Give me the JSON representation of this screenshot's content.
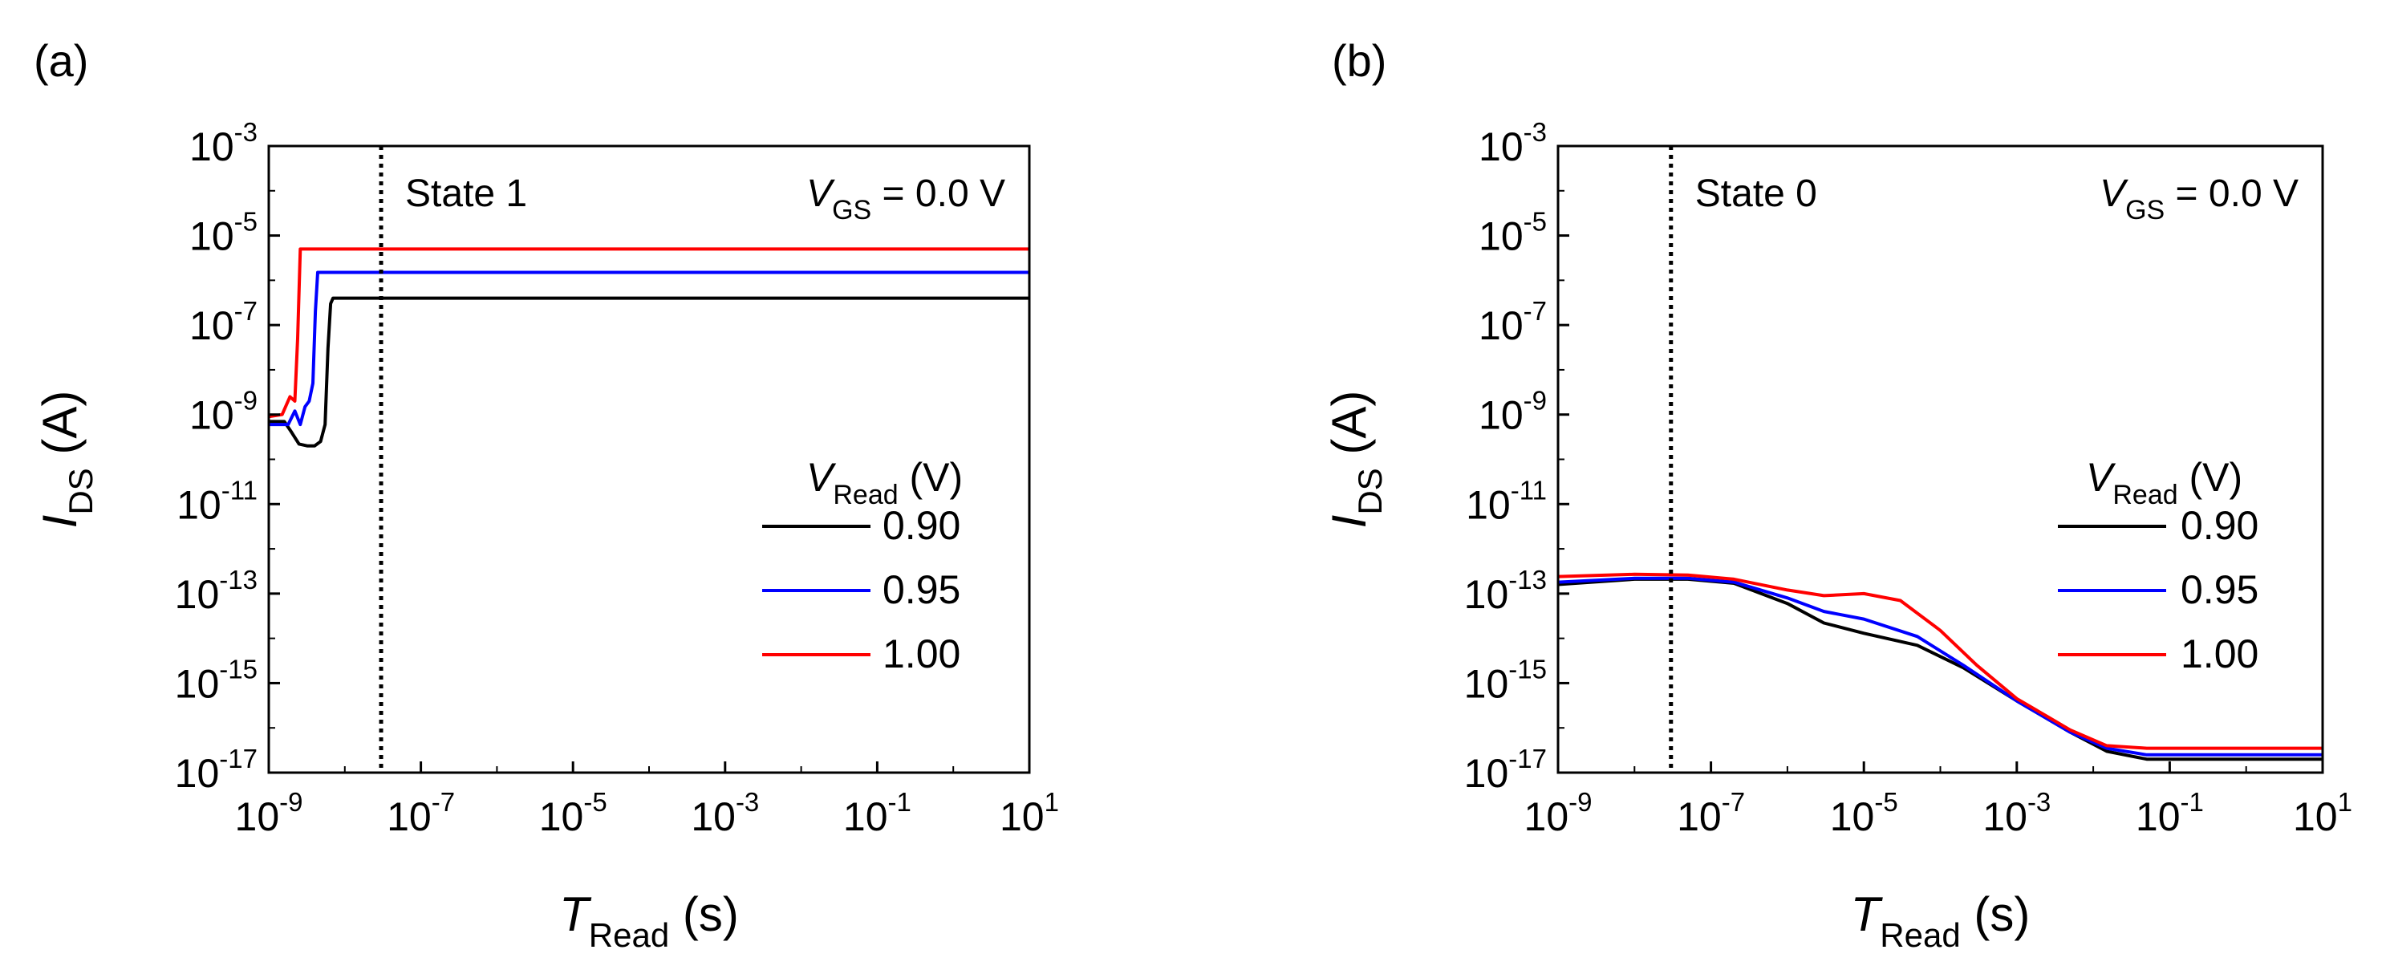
{
  "chart_data": [
    {
      "type": "line",
      "panel_label": "(a)",
      "x_scale": "log",
      "y_scale": "log",
      "xlim": [
        1e-09,
        10
      ],
      "ylim": [
        1e-17,
        0.001
      ],
      "x_ticks": [
        {
          "base": "10",
          "exp": "-9",
          "value": 1e-09
        },
        {
          "base": "10",
          "exp": "-7",
          "value": 1e-07
        },
        {
          "base": "10",
          "exp": "-5",
          "value": 1e-05
        },
        {
          "base": "10",
          "exp": "-3",
          "value": 0.001
        },
        {
          "base": "10",
          "exp": "-1",
          "value": 0.1
        },
        {
          "base": "10",
          "exp": "1",
          "value": 10
        }
      ],
      "y_ticks": [
        {
          "base": "10",
          "exp": "-3",
          "value": 0.001
        },
        {
          "base": "10",
          "exp": "-5",
          "value": 1e-05
        },
        {
          "base": "10",
          "exp": "-7",
          "value": 1e-07
        },
        {
          "base": "10",
          "exp": "-9",
          "value": 1e-09
        },
        {
          "base": "10",
          "exp": "-11",
          "value": 1e-11
        },
        {
          "base": "10",
          "exp": "-13",
          "value": 1e-13
        },
        {
          "base": "10",
          "exp": "-15",
          "value": 1e-15
        },
        {
          "base": "10",
          "exp": "-17",
          "value": 1e-17
        }
      ],
      "xlabel": {
        "main": "T",
        "sub": "Read",
        "unit": " (s)"
      },
      "ylabel": {
        "main": "I",
        "sub": "DS",
        "unit": " (A)"
      },
      "state_label": "State 1",
      "vgs_label": {
        "main": "V",
        "sub": "GS",
        "rest": " = 0.0 V"
      },
      "vline_x": 3e-08,
      "legend_title": {
        "main": "V",
        "sub": "Read",
        "unit": " (V)"
      },
      "series": [
        {
          "name": "0.90",
          "color": "#000000",
          "points": [
            [
              1e-09,
              7e-10
            ],
            [
              1.6e-09,
              7e-10
            ],
            [
              2e-09,
              4e-10
            ],
            [
              2.5e-09,
              2.2e-10
            ],
            [
              3.2e-09,
              2e-10
            ],
            [
              4e-09,
              2e-10
            ],
            [
              4.8e-09,
              2.5e-10
            ],
            [
              5.5e-09,
              6e-10
            ],
            [
              6e-09,
              3e-08
            ],
            [
              6.5e-09,
              3e-07
            ],
            [
              7e-09,
              4e-07
            ],
            [
              10,
              4e-07
            ]
          ]
        },
        {
          "name": "0.95",
          "color": "#0000ff",
          "points": [
            [
              1e-09,
              6e-10
            ],
            [
              1.8e-09,
              6e-10
            ],
            [
              2.2e-09,
              1.2e-09
            ],
            [
              2.6e-09,
              6e-10
            ],
            [
              3e-09,
              1.5e-09
            ],
            [
              3.4e-09,
              2e-09
            ],
            [
              3.8e-09,
              5e-09
            ],
            [
              4.1e-09,
              2e-07
            ],
            [
              4.4e-09,
              1.5e-06
            ],
            [
              10,
              1.5e-06
            ]
          ]
        },
        {
          "name": "1.00",
          "color": "#ff0000",
          "points": [
            [
              1e-09,
              9e-10
            ],
            [
              1.5e-09,
              1e-09
            ],
            [
              1.9e-09,
              2.5e-09
            ],
            [
              2.2e-09,
              2e-09
            ],
            [
              2.4e-09,
              5e-08
            ],
            [
              2.6e-09,
              5e-06
            ],
            [
              10,
              5e-06
            ]
          ]
        }
      ]
    },
    {
      "type": "line",
      "panel_label": "(b)",
      "x_scale": "log",
      "y_scale": "log",
      "xlim": [
        1e-09,
        10
      ],
      "ylim": [
        1e-17,
        0.001
      ],
      "x_ticks": [
        {
          "base": "10",
          "exp": "-9",
          "value": 1e-09
        },
        {
          "base": "10",
          "exp": "-7",
          "value": 1e-07
        },
        {
          "base": "10",
          "exp": "-5",
          "value": 1e-05
        },
        {
          "base": "10",
          "exp": "-3",
          "value": 0.001
        },
        {
          "base": "10",
          "exp": "-1",
          "value": 0.1
        },
        {
          "base": "10",
          "exp": "1",
          "value": 10
        }
      ],
      "y_ticks": [
        {
          "base": "10",
          "exp": "-3",
          "value": 0.001
        },
        {
          "base": "10",
          "exp": "-5",
          "value": 1e-05
        },
        {
          "base": "10",
          "exp": "-7",
          "value": 1e-07
        },
        {
          "base": "10",
          "exp": "-9",
          "value": 1e-09
        },
        {
          "base": "10",
          "exp": "-11",
          "value": 1e-11
        },
        {
          "base": "10",
          "exp": "-13",
          "value": 1e-13
        },
        {
          "base": "10",
          "exp": "-15",
          "value": 1e-15
        },
        {
          "base": "10",
          "exp": "-17",
          "value": 1e-17
        }
      ],
      "xlabel": {
        "main": "T",
        "sub": "Read",
        "unit": " (s)"
      },
      "ylabel": {
        "main": "I",
        "sub": "DS",
        "unit": " (A)"
      },
      "state_label": "State 0",
      "vgs_label": {
        "main": "V",
        "sub": "GS",
        "rest": " = 0.0 V"
      },
      "vline_x": 3e-08,
      "legend_title": {
        "main": "V",
        "sub": "Read",
        "unit": " (V)"
      },
      "series": [
        {
          "name": "0.90",
          "color": "#000000",
          "points": [
            [
              1e-09,
              1.6e-13
            ],
            [
              1e-08,
              2.1e-13
            ],
            [
              5e-08,
              2.1e-13
            ],
            [
              2e-07,
              1.7e-13
            ],
            [
              1e-06,
              6e-14
            ],
            [
              3e-06,
              2.2e-14
            ],
            [
              1e-05,
              1.3e-14
            ],
            [
              5e-05,
              7e-15
            ],
            [
              0.0002,
              2.2e-15
            ],
            [
              0.001,
              4e-16
            ],
            [
              0.005,
              8e-17
            ],
            [
              0.015,
              3e-17
            ],
            [
              0.05,
              2e-17
            ],
            [
              10,
              2e-17
            ]
          ]
        },
        {
          "name": "0.95",
          "color": "#0000ff",
          "points": [
            [
              1e-09,
              1.8e-13
            ],
            [
              1e-08,
              2.2e-13
            ],
            [
              5e-08,
              2.2e-13
            ],
            [
              2e-07,
              1.8e-13
            ],
            [
              1e-06,
              8e-14
            ],
            [
              3e-06,
              4e-14
            ],
            [
              1e-05,
              2.7e-14
            ],
            [
              5e-05,
              1.1e-14
            ],
            [
              0.0002,
              2.5e-15
            ],
            [
              0.001,
              4e-16
            ],
            [
              0.005,
              8e-17
            ],
            [
              0.015,
              3.5e-17
            ],
            [
              0.05,
              2.5e-17
            ],
            [
              10,
              2.5e-17
            ]
          ]
        },
        {
          "name": "1.00",
          "color": "#ff0000",
          "points": [
            [
              1e-09,
              2.4e-13
            ],
            [
              1e-08,
              2.7e-13
            ],
            [
              5e-08,
              2.6e-13
            ],
            [
              2e-07,
              2.1e-13
            ],
            [
              1e-06,
              1.2e-13
            ],
            [
              3e-06,
              9e-14
            ],
            [
              1e-05,
              1e-13
            ],
            [
              3e-05,
              7e-14
            ],
            [
              0.0001,
              1.5e-14
            ],
            [
              0.0003,
              2.5e-15
            ],
            [
              0.001,
              4.5e-16
            ],
            [
              0.005,
              9e-17
            ],
            [
              0.015,
              4e-17
            ],
            [
              0.05,
              3.5e-17
            ],
            [
              10,
              3.5e-17
            ]
          ]
        }
      ]
    }
  ]
}
